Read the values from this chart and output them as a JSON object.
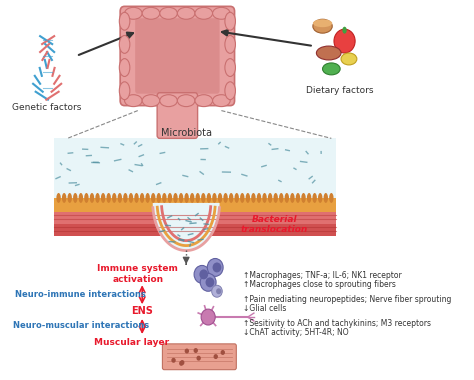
{
  "title": "",
  "labels": {
    "genetic_factors": "Genetic factors",
    "dietary_factors": "Dietary factors",
    "microbiota": "Microbiota",
    "bacterial_translocation": "Bacterial\ntranslocation",
    "immune_system": "Immune system\nactivation",
    "neuro_immune": "Neuro-immune interactions",
    "ens": "ENS",
    "neuro_muscular": "Neuro-muscular interactions",
    "muscular_layer": "Muscular layer",
    "bullet1": "↑Macrophages; TNF-a; IL-6; NK1 receptor",
    "bullet2": "↑Macrophages close to sprouting fibers",
    "bullet3": "↑Pain mediating neuropeptides; Nerve fiber sprouting",
    "bullet4": "↓Glial cells",
    "bullet5": "↑Sesitivity to ACh and tachykinins; M3 receptors",
    "bullet6": "↓ChAT activity; 5HT-4R; NO"
  },
  "colors": {
    "bg_color": "#ffffff",
    "red_text": "#e8192c",
    "blue_text": "#2e75b6",
    "dark_text": "#333333",
    "gray_text": "#555555",
    "arrow_color": "#333333",
    "colon_body": "#e8a0a0",
    "colon_dark": "#c97070",
    "microbiota_bg": "#d4eef5",
    "immune_bg": "#c8c8e8",
    "nerve_color": "#c87ab0",
    "muscle_color": "#e8a090",
    "dna_color": "#40a0d0",
    "bacteria_color": "#5090a0"
  }
}
